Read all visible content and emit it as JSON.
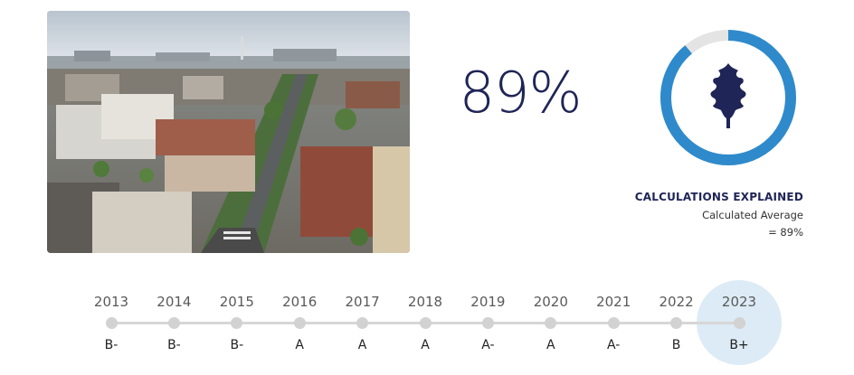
{
  "hero": {
    "image_description_icon": "city-aerial-photo",
    "score": "89%"
  },
  "score_ring": {
    "percent": 89,
    "ring_color": "#2f8acb",
    "track_color": "#e4e4e4",
    "icon": "oak-leaf-icon",
    "icon_color": "#1f2557"
  },
  "calculations": {
    "title": "CALCULATIONS EXPLAINED",
    "label": "Calculated Average",
    "value": "= 89%"
  },
  "timeline": {
    "items": [
      {
        "year": "2013",
        "grade": "B-"
      },
      {
        "year": "2014",
        "grade": "B-"
      },
      {
        "year": "2015",
        "grade": "B-"
      },
      {
        "year": "2016",
        "grade": "A"
      },
      {
        "year": "2017",
        "grade": "A"
      },
      {
        "year": "2018",
        "grade": "A"
      },
      {
        "year": "2019",
        "grade": "A-"
      },
      {
        "year": "2020",
        "grade": "A"
      },
      {
        "year": "2021",
        "grade": "A-"
      },
      {
        "year": "2022",
        "grade": "B"
      },
      {
        "year": "2023",
        "grade": "B+"
      }
    ],
    "selected_year": "2023",
    "highlight_color": "#dcebf5"
  }
}
